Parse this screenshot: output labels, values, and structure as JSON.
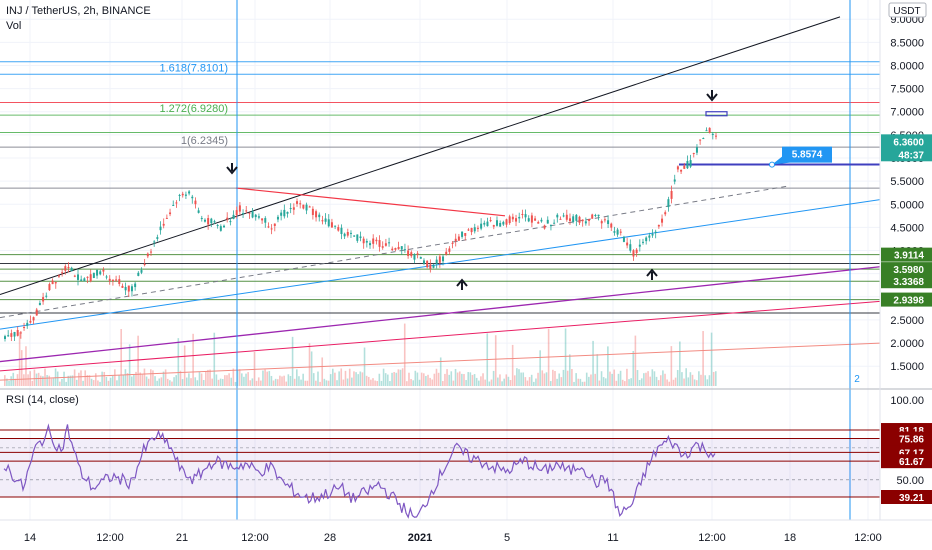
{
  "header": {
    "title": "INJ / TetherUS, 2h, BINANCE",
    "volume_label": "Vol",
    "currency_button": "USDT",
    "rsi_title": "RSI (14, close)"
  },
  "chart_data": [
    {
      "type": "candlestick",
      "symbol": "INJ / TetherUS",
      "timeframe": "2h",
      "exchange": "BINANCE",
      "price_axis_ticks": [
        "9.0000",
        "8.5000",
        "8.0000",
        "7.5000",
        "7.0000",
        "6.5000",
        "6.0000",
        "5.5000",
        "5.0000",
        "4.5000",
        "4.0000",
        "3.5000",
        "3.0000",
        "2.5000",
        "2.0000",
        "1.5000"
      ],
      "time_axis_ticks": [
        "14",
        "12:00",
        "21",
        "12:00",
        "28",
        "2021",
        "5",
        "11",
        "12:00",
        "18",
        "12:00"
      ],
      "ylim": [
        1.3,
        9.1
      ],
      "price_path": [
        [
          0,
          2.08
        ],
        [
          4,
          2.4
        ],
        [
          7,
          3.2
        ],
        [
          10,
          3.72
        ],
        [
          12,
          3.3
        ],
        [
          15,
          3.55
        ],
        [
          18,
          3.3
        ],
        [
          20,
          3.15
        ],
        [
          22,
          3.75
        ],
        [
          25,
          4.6
        ],
        [
          27,
          5.1
        ],
        [
          29,
          5.3
        ],
        [
          31,
          4.7
        ],
        [
          34,
          4.5
        ],
        [
          37,
          4.9
        ],
        [
          40,
          4.75
        ],
        [
          42,
          4.55
        ],
        [
          44,
          4.8
        ],
        [
          46,
          5.0
        ],
        [
          48,
          4.9
        ],
        [
          51,
          4.6
        ],
        [
          54,
          4.35
        ],
        [
          58,
          4.18
        ],
        [
          62,
          4.05
        ],
        [
          65,
          3.85
        ],
        [
          67,
          3.65
        ],
        [
          69,
          3.85
        ],
        [
          72,
          4.35
        ],
        [
          75,
          4.55
        ],
        [
          78,
          4.6
        ],
        [
          82,
          4.75
        ],
        [
          85,
          4.55
        ],
        [
          88,
          4.75
        ],
        [
          91,
          4.65
        ],
        [
          93,
          4.75
        ],
        [
          95,
          4.6
        ],
        [
          97,
          4.35
        ],
        [
          99,
          3.95
        ],
        [
          101,
          4.2
        ],
        [
          103,
          4.5
        ],
        [
          105,
          5.2
        ],
        [
          106,
          5.75
        ],
        [
          108,
          5.9
        ],
        [
          110,
          6.45
        ],
        [
          111,
          6.6
        ],
        [
          112,
          6.4
        ]
      ],
      "price_labels": [
        {
          "text": "6.3600",
          "color": "#26a69a"
        },
        {
          "text": "48:37",
          "color": "#26a69a"
        },
        {
          "text": "3.9114",
          "color": "#387f26"
        },
        {
          "text": "3.5980",
          "color": "#387f26"
        },
        {
          "text": "3.3368",
          "color": "#387f26"
        },
        {
          "text": "2.9398",
          "color": "#387f26"
        }
      ],
      "fib_levels": [
        {
          "text": "1.618(7.8101)",
          "value": 7.8101,
          "color": "#2196f3"
        },
        {
          "text": "1.272(6.9280)",
          "value": 6.928,
          "color": "#4caf50"
        },
        {
          "text": "1(6.2345)",
          "value": 6.2345,
          "color": "#787b86"
        }
      ],
      "horizontal_lines": [
        {
          "value": 8.08,
          "color": "#2196f3"
        },
        {
          "value": 7.8101,
          "color": "#2196f3"
        },
        {
          "value": 7.2,
          "color": "#f23645"
        },
        {
          "value": 6.928,
          "color": "#4caf50"
        },
        {
          "value": 6.55,
          "color": "#4caf50"
        },
        {
          "value": 6.2345,
          "color": "#787b86"
        },
        {
          "value": 5.35,
          "color": "#787b86"
        },
        {
          "value": 3.9114,
          "color": "#387f26"
        },
        {
          "value": 3.72,
          "color": "#131722"
        },
        {
          "value": 3.598,
          "color": "#387f26"
        },
        {
          "value": 3.3368,
          "color": "#387f26"
        },
        {
          "value": 2.9398,
          "color": "#387f26"
        },
        {
          "value": 2.65,
          "color": "#131722"
        }
      ],
      "callout": {
        "text": "5.8574",
        "color": "#2196f3",
        "value": 5.8574
      },
      "vertical_label": "2"
    },
    {
      "type": "line",
      "title": "RSI (14, close)",
      "axis_ticks": [
        "100.00",
        "50.00"
      ],
      "levels": [
        {
          "text": "81.18",
          "value": 81.18
        },
        {
          "text": "75.86",
          "value": 75.86
        },
        {
          "text": "67.17",
          "value": 67.17
        },
        {
          "text": "61.67",
          "value": 61.67
        },
        {
          "text": "39.21",
          "value": 39.21
        }
      ],
      "ylim": [
        0,
        100
      ],
      "path": [
        [
          0,
          60
        ],
        [
          3,
          45
        ],
        [
          5,
          70
        ],
        [
          7,
          80
        ],
        [
          9,
          68
        ],
        [
          10,
          82
        ],
        [
          12,
          55
        ],
        [
          14,
          45
        ],
        [
          17,
          52
        ],
        [
          20,
          48
        ],
        [
          22,
          68
        ],
        [
          24,
          78
        ],
        [
          26,
          72
        ],
        [
          28,
          55
        ],
        [
          30,
          50
        ],
        [
          33,
          62
        ],
        [
          36,
          58
        ],
        [
          38,
          60
        ],
        [
          40,
          55
        ],
        [
          42,
          58
        ],
        [
          44,
          48
        ],
        [
          46,
          42
        ],
        [
          48,
          38
        ],
        [
          50,
          40
        ],
        [
          53,
          45
        ],
        [
          55,
          38
        ],
        [
          57,
          42
        ],
        [
          59,
          47
        ],
        [
          61,
          40
        ],
        [
          63,
          32
        ],
        [
          65,
          25
        ],
        [
          67,
          40
        ],
        [
          69,
          55
        ],
        [
          71,
          70
        ],
        [
          73,
          65
        ],
        [
          76,
          60
        ],
        [
          79,
          55
        ],
        [
          82,
          62
        ],
        [
          85,
          55
        ],
        [
          87,
          60
        ],
        [
          89,
          55
        ],
        [
          91,
          60
        ],
        [
          93,
          48
        ],
        [
          95,
          50
        ],
        [
          97,
          28
        ],
        [
          99,
          35
        ],
        [
          101,
          55
        ],
        [
          103,
          70
        ],
        [
          105,
          75
        ],
        [
          107,
          65
        ],
        [
          109,
          72
        ],
        [
          111,
          68
        ],
        [
          112,
          66
        ]
      ]
    }
  ]
}
